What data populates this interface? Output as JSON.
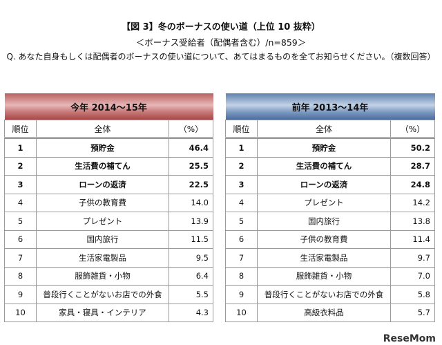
{
  "title": "【図 3】冬のボーナスの使い道（上位 10 抜粋）",
  "subtitle": "＜ボーナス受給者（配偶者含む）/n=859＞",
  "question": "Q. あなた自身もしくは配偶者のボーナスの使い道について、あてはまるものを全てお知らせください。（複数回答）",
  "columns": {
    "rank": "順位",
    "item": "全体",
    "pct": "（%）"
  },
  "tables": [
    {
      "header": "今年 2014～15年",
      "color": "#b96060",
      "rows": [
        {
          "rank": "1",
          "item": "預貯金",
          "pct": "46.4"
        },
        {
          "rank": "2",
          "item": "生活費の補てん",
          "pct": "25.5"
        },
        {
          "rank": "3",
          "item": "ローンの返済",
          "pct": "22.5"
        },
        {
          "rank": "4",
          "item": "子供の教育費",
          "pct": "14.0"
        },
        {
          "rank": "5",
          "item": "プレゼント",
          "pct": "13.9"
        },
        {
          "rank": "6",
          "item": "国内旅行",
          "pct": "11.5"
        },
        {
          "rank": "7",
          "item": "生活家電製品",
          "pct": "9.5"
        },
        {
          "rank": "8",
          "item": "服飾雑貨・小物",
          "pct": "6.4"
        },
        {
          "rank": "9",
          "item": "普段行くことがないお店での外食",
          "pct": "5.5"
        },
        {
          "rank": "10",
          "item": "家具・寝具・インテリア",
          "pct": "4.3"
        }
      ]
    },
    {
      "header": "前年 2013～14年",
      "color": "#5f81ae",
      "rows": [
        {
          "rank": "1",
          "item": "預貯金",
          "pct": "50.2"
        },
        {
          "rank": "2",
          "item": "生活費の補てん",
          "pct": "28.7"
        },
        {
          "rank": "3",
          "item": "ローンの返済",
          "pct": "24.8"
        },
        {
          "rank": "4",
          "item": "プレゼント",
          "pct": "14.2"
        },
        {
          "rank": "5",
          "item": "国内旅行",
          "pct": "13.8"
        },
        {
          "rank": "6",
          "item": "子供の教育費",
          "pct": "11.4"
        },
        {
          "rank": "7",
          "item": "生活家電製品",
          "pct": "9.7"
        },
        {
          "rank": "8",
          "item": "服飾雑貨・小物",
          "pct": "7.0"
        },
        {
          "rank": "9",
          "item": "普段行くことがないお店での外食",
          "pct": "5.8"
        },
        {
          "rank": "10",
          "item": "高級衣料品",
          "pct": "5.7"
        }
      ]
    }
  ],
  "logo": "ReseMom"
}
